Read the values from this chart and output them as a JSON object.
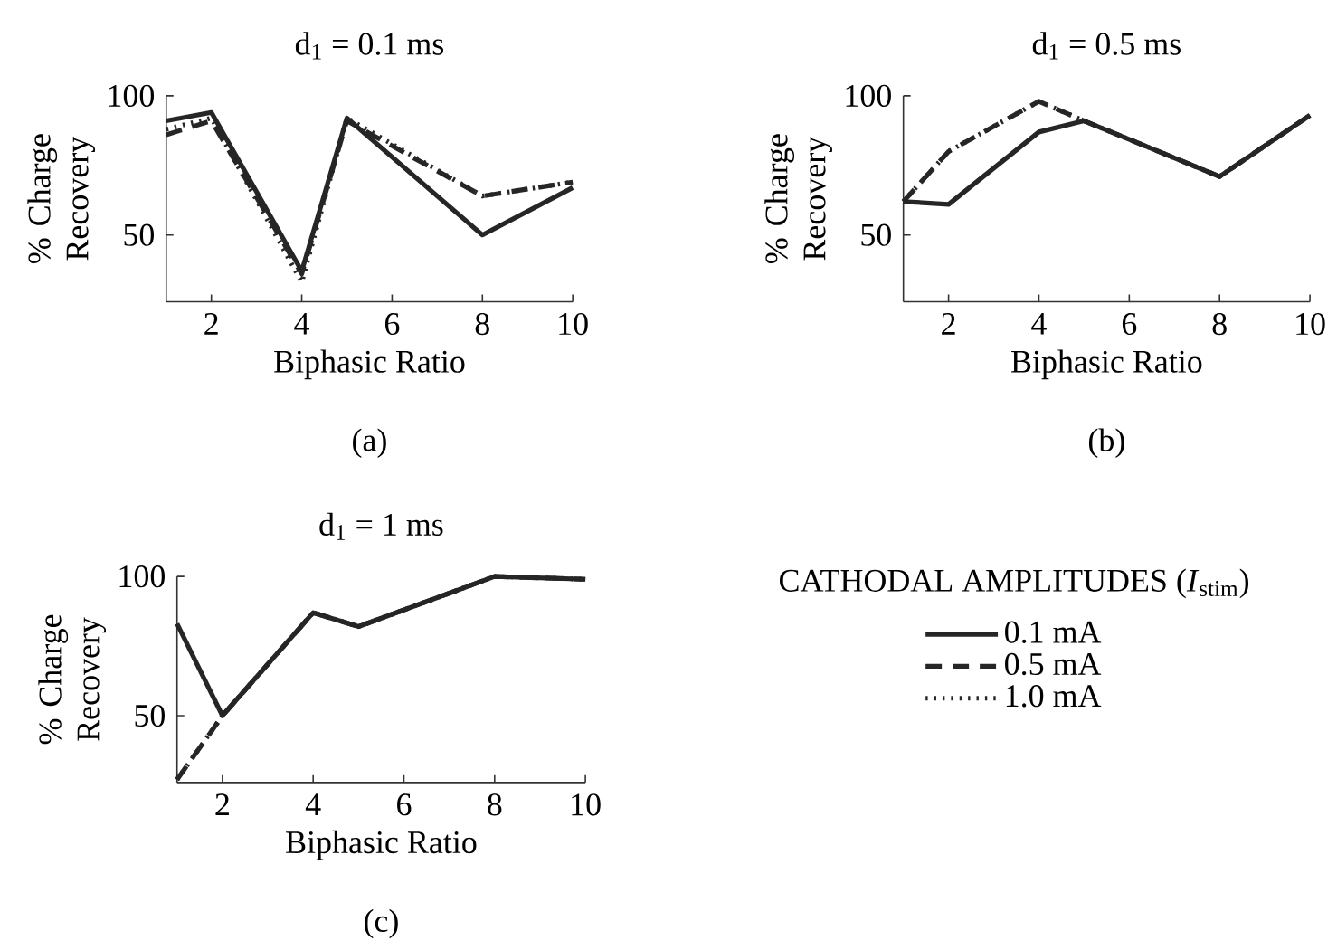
{
  "chart_data": [
    {
      "type": "line",
      "title": "d$_{1}$ = 0.1 ms",
      "xlabel": "Biphasic Ratio",
      "ylabel": "% Charge Recovery",
      "annotations": [
        "(a)"
      ],
      "x": [
        1,
        2,
        4,
        5,
        8,
        10
      ],
      "xlim": [
        1,
        10
      ],
      "ylim": [
        26,
        100
      ],
      "xticks": [
        2,
        4,
        6,
        8,
        10
      ],
      "yticks": [
        50,
        100
      ],
      "legend": false,
      "series": [
        {
          "color": "#262626",
          "line_style": "solid",
          "values": [
            91,
            94,
            37,
            92,
            50,
            67
          ]
        },
        {
          "color": "#262626",
          "line_style": "dashed",
          "values": [
            86,
            91,
            36,
            91,
            64,
            69
          ]
        },
        {
          "color": "#262626",
          "line_style": "dotted",
          "values": [
            88,
            92,
            33,
            92,
            64,
            69
          ]
        }
      ]
    },
    {
      "type": "line",
      "title": "d$_{1}$ = 0.5 ms",
      "xlabel": "Biphasic Ratio",
      "ylabel": "% Charge Recovery",
      "annotations": [
        "(b)"
      ],
      "x": [
        1,
        2,
        4,
        5,
        8,
        10
      ],
      "xlim": [
        1,
        10
      ],
      "ylim": [
        26,
        100
      ],
      "xticks": [
        2,
        4,
        6,
        8,
        10
      ],
      "yticks": [
        50,
        100
      ],
      "legend": false,
      "series": [
        {
          "color": "#262626",
          "line_style": "solid",
          "values": [
            62,
            61,
            87,
            91,
            71,
            93
          ]
        },
        {
          "color": "#262626",
          "line_style": "dashed",
          "values": [
            62,
            80,
            98,
            91,
            71,
            93
          ]
        },
        {
          "color": "#262626",
          "line_style": "dotted",
          "values": [
            62,
            80,
            98,
            91,
            71,
            93
          ]
        }
      ]
    },
    {
      "type": "line",
      "title": "d$_{1}$ = 1 ms",
      "xlabel": "Biphasic Ratio",
      "ylabel": "% Charge Recovery",
      "annotations": [
        "(c)"
      ],
      "legend_title": "CATHODAL AMPLITUDES (*I*$_{stim}$)",
      "x": [
        1,
        2,
        4,
        5,
        8,
        10
      ],
      "xlim": [
        1,
        10
      ],
      "ylim": [
        26,
        100
      ],
      "xticks": [
        2,
        4,
        6,
        8,
        10
      ],
      "yticks": [
        50,
        100
      ],
      "legend": "right",
      "series": [
        {
          "name": "0.1 mA",
          "color": "#262626",
          "line_style": "solid",
          "values": [
            83,
            50,
            87,
            82,
            100,
            99
          ]
        },
        {
          "name": "0.5 mA",
          "color": "#262626",
          "line_style": "dashed",
          "values": [
            27,
            50,
            87,
            82,
            100,
            99
          ]
        },
        {
          "name": "1.0 mA",
          "color": "#262626",
          "line_style": "dotted",
          "values": [
            27,
            50,
            87,
            82,
            100,
            99
          ]
        }
      ]
    }
  ]
}
